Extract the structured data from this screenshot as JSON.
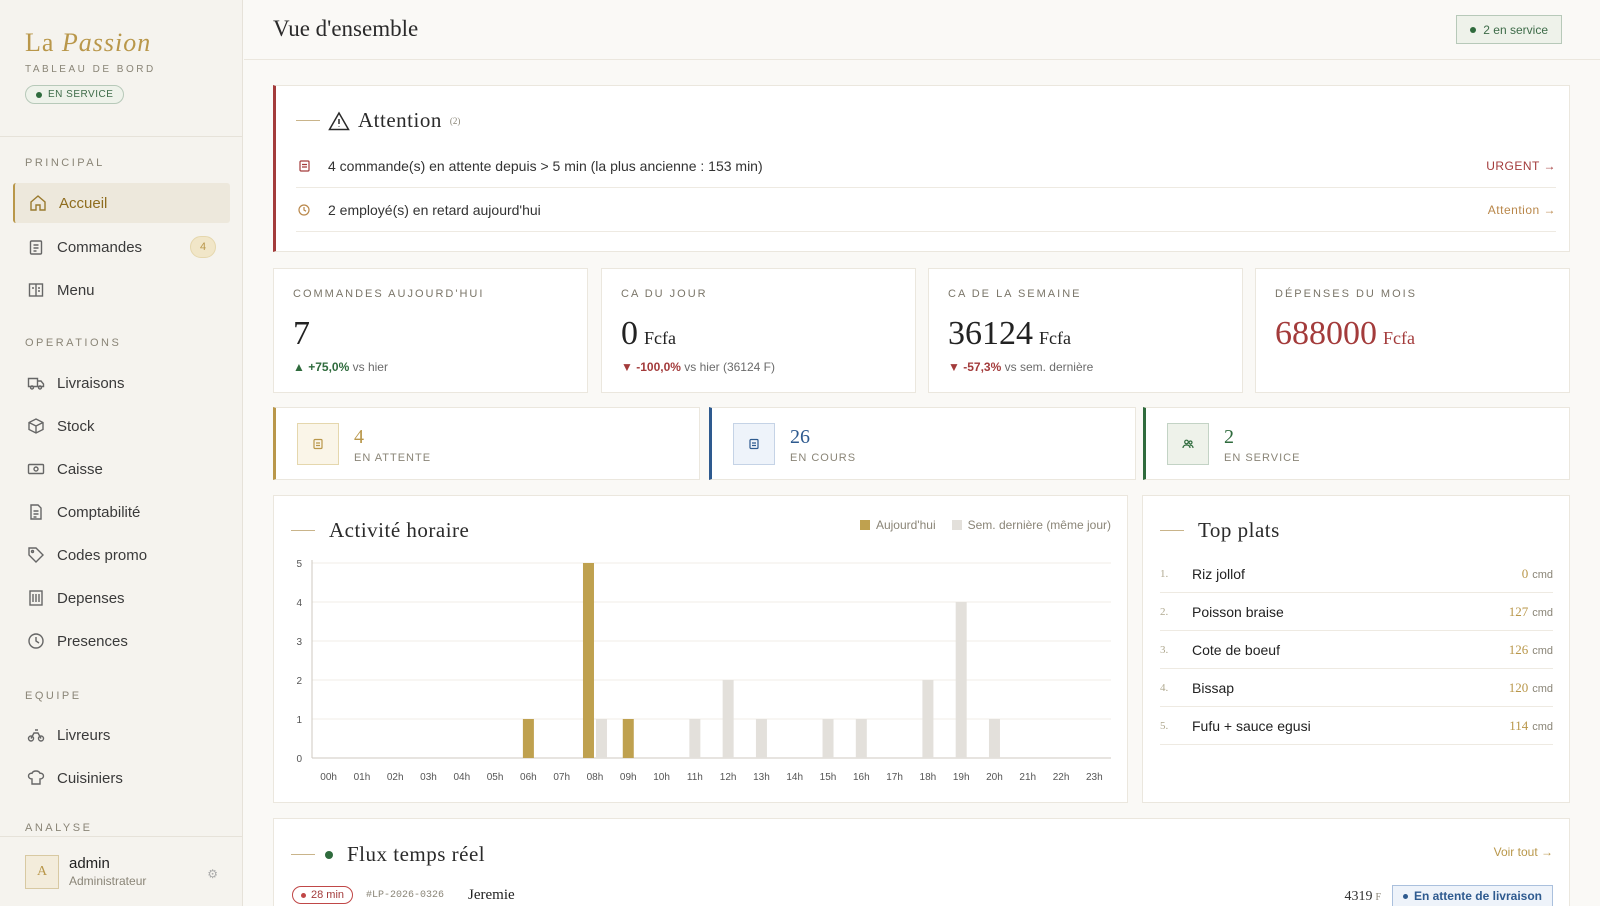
{
  "brand": {
    "name_plain": "La",
    "name_italic": "Passion",
    "subtitle": "TABLEAU DE BORD",
    "status": "EN SERVICE"
  },
  "sidebar": {
    "sections": [
      {
        "label": "PRINCIPAL"
      },
      {
        "label": "OPERATIONS"
      },
      {
        "label": "EQUIPE"
      },
      {
        "label": "ANALYSE"
      }
    ],
    "items": [
      {
        "label": "Accueil",
        "icon": "home-icon"
      },
      {
        "label": "Commandes",
        "icon": "clipboard-icon",
        "badge": "4"
      },
      {
        "label": "Menu",
        "icon": "book-icon"
      },
      {
        "label": "Livraisons",
        "icon": "truck-icon"
      },
      {
        "label": "Stock",
        "icon": "box-icon"
      },
      {
        "label": "Caisse",
        "icon": "cash-icon"
      },
      {
        "label": "Comptabilité",
        "icon": "document-icon"
      },
      {
        "label": "Codes promo",
        "icon": "tag-icon"
      },
      {
        "label": "Depenses",
        "icon": "receipt-icon"
      },
      {
        "label": "Presences",
        "icon": "clock-icon"
      },
      {
        "label": "Livreurs",
        "icon": "bike-icon"
      },
      {
        "label": "Cuisiniers",
        "icon": "chef-hat-icon"
      }
    ]
  },
  "user": {
    "initial": "A",
    "name": "admin",
    "role": "Administrateur"
  },
  "header": {
    "title": "Vue d'ensemble",
    "status": "2 en service"
  },
  "alerts": {
    "title": "Attention",
    "count": "(2)",
    "rows": [
      {
        "text": "4 commande(s) en attente depuis > 5 min (la plus ancienne : 153 min)",
        "link": "URGENT →"
      },
      {
        "text": "2 employé(s) en retard aujourd'hui",
        "link": "Attention →"
      }
    ]
  },
  "kpis": [
    {
      "label": "COMMANDES AUJOURD'HUI",
      "value": "7",
      "unit": "",
      "delta": "+75,0%",
      "delta_arrow": "▲",
      "delta_note": "vs hier"
    },
    {
      "label": "CA DU JOUR",
      "value": "0",
      "unit": "Fcfa",
      "delta": "-100,0%",
      "delta_arrow": "▼",
      "delta_note": "vs hier (36124 F)"
    },
    {
      "label": "CA DE LA SEMAINE",
      "value": "36124",
      "unit": "Fcfa",
      "delta": "-57,3%",
      "delta_arrow": "▼",
      "delta_note": "vs sem. dernière"
    },
    {
      "label": "DÉPENSES DU MOIS",
      "value": "688000",
      "unit": "Fcfa"
    }
  ],
  "stats": [
    {
      "value": "4",
      "label": "EN ATTENTE",
      "color": "#b9974a"
    },
    {
      "value": "26",
      "label": "EN COURS",
      "color": "#2e5a8f"
    },
    {
      "value": "2",
      "label": "EN SERVICE",
      "color": "#2f6b3d"
    }
  ],
  "chart_title": "Activité horaire",
  "chart_data": {
    "type": "bar",
    "categories": [
      "00h",
      "01h",
      "02h",
      "03h",
      "04h",
      "05h",
      "06h",
      "07h",
      "08h",
      "09h",
      "10h",
      "11h",
      "12h",
      "13h",
      "14h",
      "15h",
      "16h",
      "17h",
      "18h",
      "19h",
      "20h",
      "21h",
      "22h",
      "23h"
    ],
    "series": [
      {
        "name": "Aujourd'hui",
        "color": "#bfa14f",
        "values": [
          0,
          0,
          0,
          0,
          0,
          0,
          1,
          0,
          5,
          1,
          0,
          0,
          0,
          0,
          0,
          0,
          0,
          0,
          0,
          0,
          0,
          0,
          0,
          0
        ]
      },
      {
        "name": "Sem. dernière (même jour)",
        "color": "#e3e0db",
        "values": [
          0,
          0,
          0,
          0,
          0,
          0,
          0,
          0,
          1,
          0,
          0,
          1,
          2,
          1,
          0,
          1,
          1,
          0,
          2,
          4,
          1,
          0,
          0,
          0
        ]
      }
    ],
    "yticks": [
      0,
      1,
      2,
      3,
      4,
      5
    ],
    "ylim": [
      0,
      5
    ],
    "grid": true,
    "legend": "top-right"
  },
  "top_plats": {
    "title": "Top plats",
    "items": [
      {
        "rank": "1.",
        "name": "Riz jollof",
        "count": "0",
        "unit": "cmd"
      },
      {
        "rank": "2.",
        "name": "Poisson braise",
        "count": "127",
        "unit": "cmd"
      },
      {
        "rank": "3.",
        "name": "Cote de boeuf",
        "count": "126",
        "unit": "cmd"
      },
      {
        "rank": "4.",
        "name": "Bissap",
        "count": "120",
        "unit": "cmd"
      },
      {
        "rank": "5.",
        "name": "Fufu + sauce egusi",
        "count": "114",
        "unit": "cmd"
      }
    ]
  },
  "flux": {
    "title": "Flux temps réel",
    "link": "Voir tout →",
    "order": {
      "age": "28 min",
      "id": "#LP-2026-0326",
      "name": "Jeremie",
      "amount": "4319",
      "currency": "F",
      "status": "En attente de livraison"
    }
  }
}
